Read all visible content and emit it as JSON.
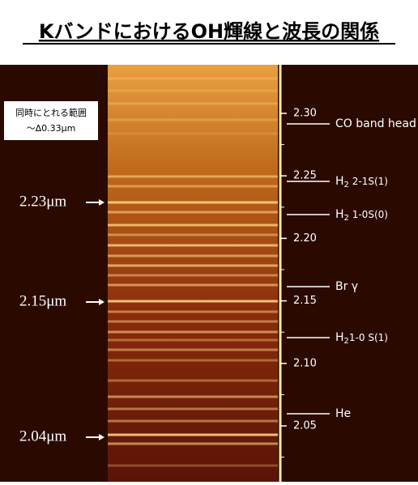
{
  "header": {
    "title": "KバンドにおけるOH輝線と波長の関係"
  },
  "note": {
    "lines": [
      "同時にとれる範囲",
      "〜Δ0.33μm"
    ]
  },
  "left_labels": [
    "2.23μm",
    "2.15μm",
    "2.04μm"
  ],
  "scale": {
    "ticks": [
      "2.30",
      "2.25",
      "2.20",
      "2.15",
      "2.10",
      "2.05"
    ]
  },
  "lines": [
    {
      "main": "CO band head"
    },
    {
      "main": "H",
      "sub": "2",
      "rest": " 2-1S(1)"
    },
    {
      "main": "H",
      "sub": "2",
      "rest": " 1-0S(0)"
    },
    {
      "main": "Br γ"
    },
    {
      "main": "H",
      "sub": "2",
      "rest": "1-0 S(1)"
    },
    {
      "main": "He"
    }
  ]
}
